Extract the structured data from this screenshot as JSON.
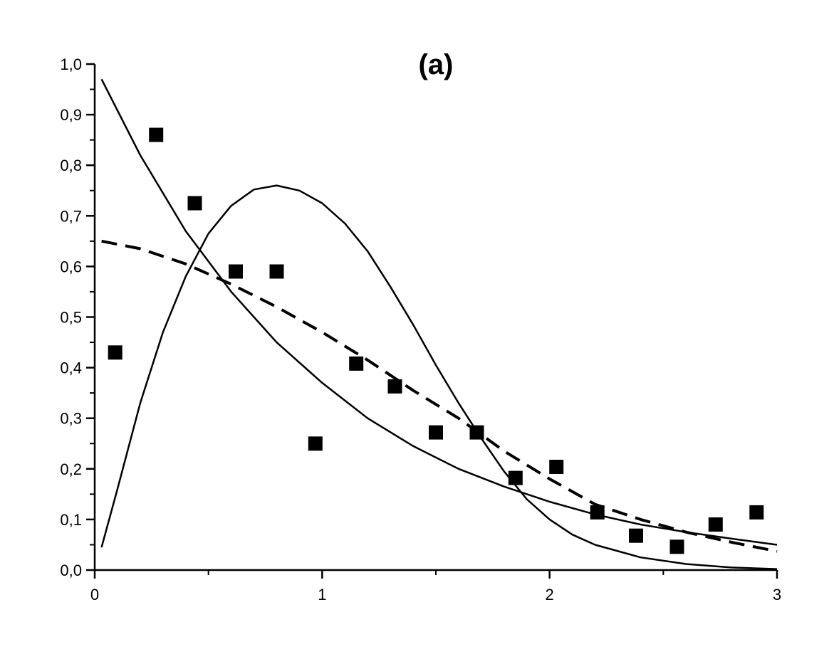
{
  "chart_data": {
    "type": "scatter",
    "title": "(a)",
    "xlabel": "",
    "ylabel": "",
    "xlim": [
      0,
      3
    ],
    "ylim": [
      0,
      1
    ],
    "x_ticks": [
      0,
      1,
      2,
      3
    ],
    "x_tick_labels": [
      "0",
      "1",
      "2",
      "3"
    ],
    "y_ticks": [
      0,
      0.1,
      0.2,
      0.3,
      0.4,
      0.5,
      0.6,
      0.7,
      0.8,
      0.9,
      1.0
    ],
    "y_tick_labels": [
      "0,0",
      "0,1",
      "0,2",
      "0,3",
      "0,4",
      "0,5",
      "0,6",
      "0,7",
      "0,8",
      "0,9",
      "1,0"
    ],
    "grid": false,
    "legend": "none",
    "colors": {
      "ink": "#000000",
      "background": "#ffffff"
    },
    "series": [
      {
        "kind": "scatter",
        "marker": "square",
        "points": [
          {
            "x": 0.09,
            "y": 0.43
          },
          {
            "x": 0.27,
            "y": 0.86
          },
          {
            "x": 0.44,
            "y": 0.725
          },
          {
            "x": 0.62,
            "y": 0.59
          },
          {
            "x": 0.8,
            "y": 0.59
          },
          {
            "x": 0.97,
            "y": 0.25
          },
          {
            "x": 1.15,
            "y": 0.408
          },
          {
            "x": 1.32,
            "y": 0.363
          },
          {
            "x": 1.5,
            "y": 0.272
          },
          {
            "x": 1.68,
            "y": 0.272
          },
          {
            "x": 1.85,
            "y": 0.182
          },
          {
            "x": 2.03,
            "y": 0.204
          },
          {
            "x": 2.21,
            "y": 0.114
          },
          {
            "x": 2.38,
            "y": 0.068
          },
          {
            "x": 2.56,
            "y": 0.046
          },
          {
            "x": 2.73,
            "y": 0.09
          },
          {
            "x": 2.91,
            "y": 0.114
          }
        ]
      },
      {
        "kind": "line",
        "style": "solid",
        "points": [
          {
            "x": 0.03,
            "y": 0.97
          },
          {
            "x": 0.2,
            "y": 0.82
          },
          {
            "x": 0.4,
            "y": 0.67
          },
          {
            "x": 0.6,
            "y": 0.55
          },
          {
            "x": 0.8,
            "y": 0.45
          },
          {
            "x": 1.0,
            "y": 0.37
          },
          {
            "x": 1.2,
            "y": 0.3
          },
          {
            "x": 1.4,
            "y": 0.245
          },
          {
            "x": 1.6,
            "y": 0.2
          },
          {
            "x": 1.8,
            "y": 0.165
          },
          {
            "x": 2.0,
            "y": 0.135
          },
          {
            "x": 2.2,
            "y": 0.11
          },
          {
            "x": 2.4,
            "y": 0.09
          },
          {
            "x": 2.6,
            "y": 0.075
          },
          {
            "x": 2.8,
            "y": 0.062
          },
          {
            "x": 3.0,
            "y": 0.05
          }
        ]
      },
      {
        "kind": "line",
        "style": "solid",
        "points": [
          {
            "x": 0.03,
            "y": 0.045
          },
          {
            "x": 0.1,
            "y": 0.16
          },
          {
            "x": 0.2,
            "y": 0.33
          },
          {
            "x": 0.3,
            "y": 0.47
          },
          {
            "x": 0.4,
            "y": 0.58
          },
          {
            "x": 0.5,
            "y": 0.665
          },
          {
            "x": 0.6,
            "y": 0.72
          },
          {
            "x": 0.7,
            "y": 0.752
          },
          {
            "x": 0.8,
            "y": 0.76
          },
          {
            "x": 0.9,
            "y": 0.75
          },
          {
            "x": 1.0,
            "y": 0.725
          },
          {
            "x": 1.1,
            "y": 0.685
          },
          {
            "x": 1.2,
            "y": 0.63
          },
          {
            "x": 1.3,
            "y": 0.56
          },
          {
            "x": 1.4,
            "y": 0.485
          },
          {
            "x": 1.5,
            "y": 0.405
          },
          {
            "x": 1.6,
            "y": 0.33
          },
          {
            "x": 1.7,
            "y": 0.26
          },
          {
            "x": 1.8,
            "y": 0.195
          },
          {
            "x": 1.9,
            "y": 0.14
          },
          {
            "x": 2.0,
            "y": 0.1
          },
          {
            "x": 2.1,
            "y": 0.07
          },
          {
            "x": 2.2,
            "y": 0.05
          },
          {
            "x": 2.4,
            "y": 0.025
          },
          {
            "x": 2.6,
            "y": 0.012
          },
          {
            "x": 2.8,
            "y": 0.005
          },
          {
            "x": 3.0,
            "y": 0.002
          }
        ]
      },
      {
        "kind": "line",
        "style": "dashed",
        "points": [
          {
            "x": 0.03,
            "y": 0.65
          },
          {
            "x": 0.2,
            "y": 0.635
          },
          {
            "x": 0.4,
            "y": 0.605
          },
          {
            "x": 0.6,
            "y": 0.565
          },
          {
            "x": 0.8,
            "y": 0.52
          },
          {
            "x": 1.0,
            "y": 0.47
          },
          {
            "x": 1.2,
            "y": 0.415
          },
          {
            "x": 1.4,
            "y": 0.355
          },
          {
            "x": 1.6,
            "y": 0.3
          },
          {
            "x": 1.8,
            "y": 0.235
          },
          {
            "x": 2.0,
            "y": 0.18
          },
          {
            "x": 2.2,
            "y": 0.13
          },
          {
            "x": 2.4,
            "y": 0.1
          },
          {
            "x": 2.6,
            "y": 0.075
          },
          {
            "x": 2.8,
            "y": 0.055
          },
          {
            "x": 3.0,
            "y": 0.037
          }
        ]
      }
    ]
  }
}
